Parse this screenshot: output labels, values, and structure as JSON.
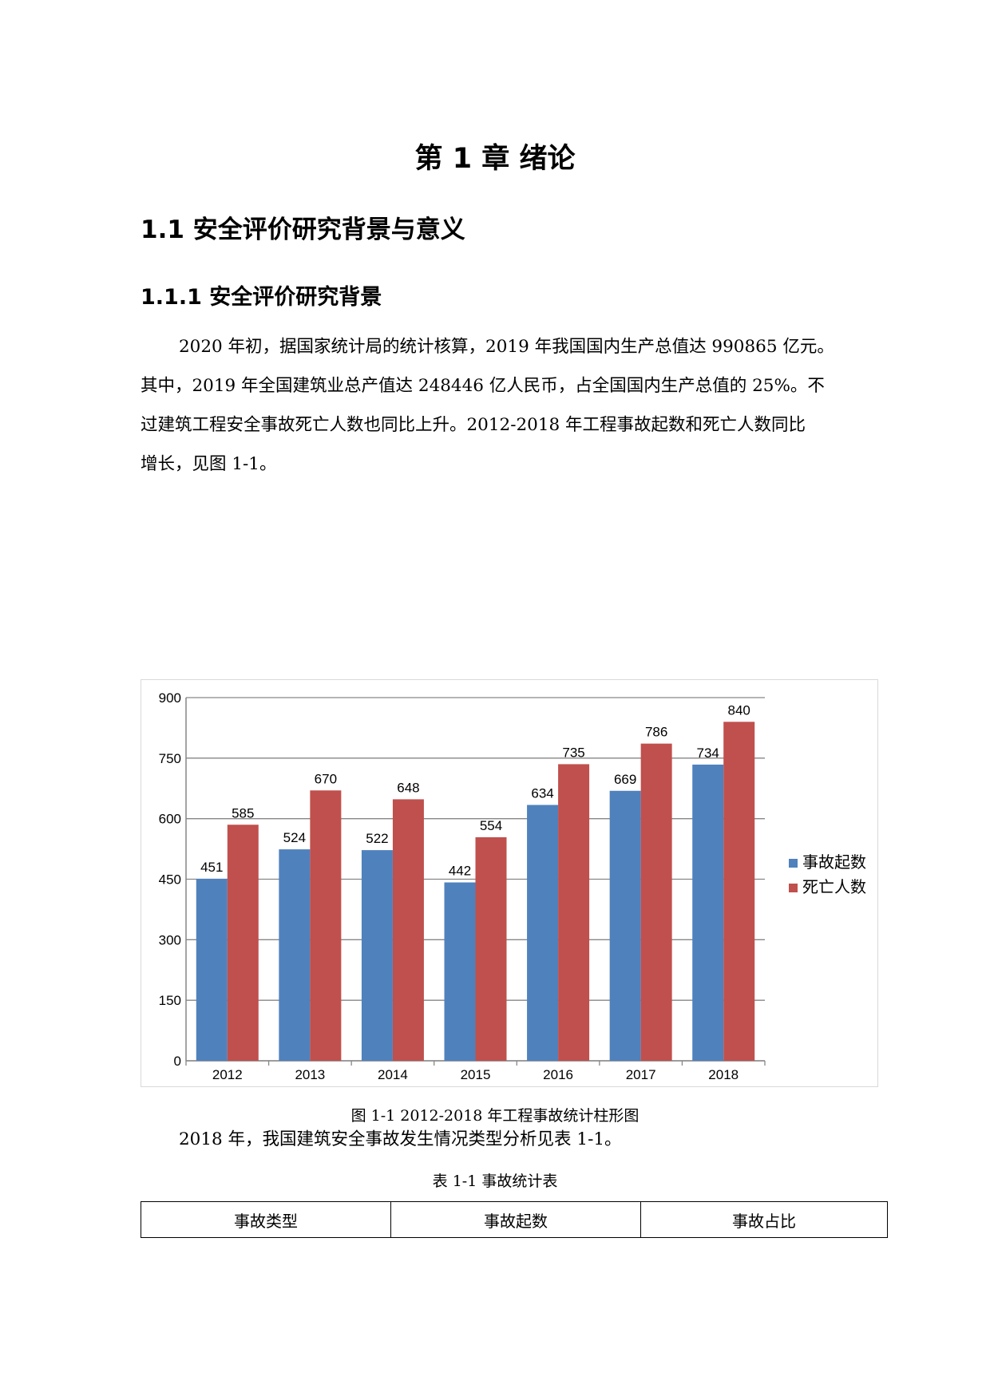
{
  "chapter_title": "第 1 章  绪论",
  "section_heading": "1.1 安全评价研究背景与意义",
  "subsection_heading": "1.1.1 安全评价研究背景",
  "paragraph1": {
    "lines": [
      "2020 年初，据国家统计局的统计核算，2019 年我国国内生产总值达 990865 亿元。",
      "其中，2019 年全国建筑业总产值达 248446 亿人民币，占全国国内生产总值的 25%。不",
      "过建筑工程安全事故死亡人数也同比上升。2012-2018 年工程事故起数和死亡人数同比",
      "增长，见图 1-1。"
    ]
  },
  "figure_caption": "图 1-1 2012-2018 年工程事故统计柱形图",
  "paragraph2": "2018 年，我国建筑安全事故发生情况类型分析见表 1-1。",
  "table_caption": "表 1-1 事故统计表",
  "table": {
    "headers": [
      "事故类型",
      "事故起数",
      "事故占比"
    ]
  },
  "colors": {
    "series1": "#4f81bd",
    "series2": "#c0504d",
    "gridline": "#868686",
    "axis": "#868686"
  },
  "chart_data": {
    "type": "bar",
    "categories": [
      "2012",
      "2013",
      "2014",
      "2015",
      "2016",
      "2017",
      "2018"
    ],
    "series": [
      {
        "name": "事故起数",
        "values": [
          451,
          524,
          522,
          442,
          634,
          669,
          734
        ]
      },
      {
        "name": "死亡人数",
        "values": [
          585,
          670,
          648,
          554,
          735,
          786,
          840
        ]
      }
    ],
    "ylim": [
      0,
      900
    ],
    "yticks": [
      "0",
      "150",
      "300",
      "450",
      "600",
      "750",
      "900"
    ],
    "grid": true,
    "legend": "right",
    "data_labels": true
  }
}
